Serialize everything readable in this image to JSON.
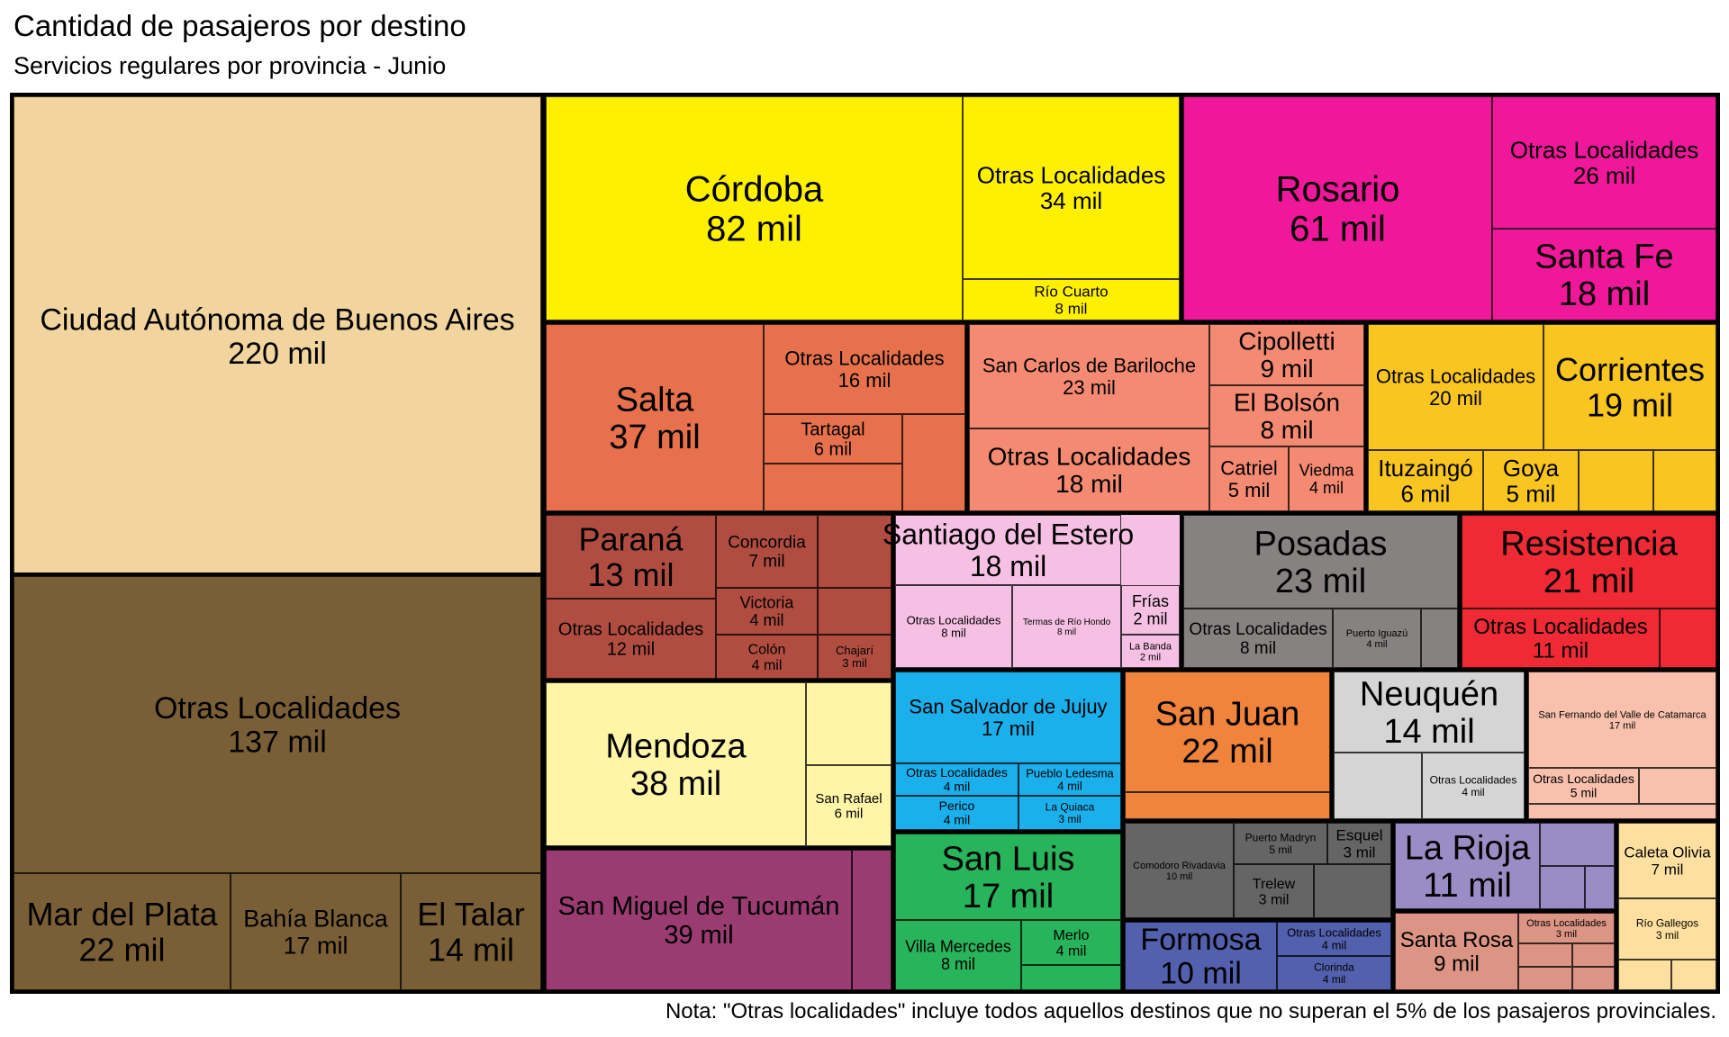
{
  "header": {
    "title": "Cantidad de pasajeros por destino",
    "subtitle": "Servicios regulares por provincia - Junio"
  },
  "footer": {
    "note": "Nota: \"Otras localidades\" incluye todos aquellos destinos que no superan el 5% de los pasajeros provinciales."
  },
  "chart_data": {
    "type": "treemap",
    "value_unit": "mil",
    "groups": [
      {
        "color": "#f2d49e",
        "items": [
          {
            "name": "Ciudad Autónoma de Buenos Aires",
            "value": 220
          }
        ]
      },
      {
        "color": "#7a5f36",
        "items": [
          {
            "name": "Otras Localidades",
            "value": 137
          },
          {
            "name": "Mar del Plata",
            "value": 22
          },
          {
            "name": "Bahía Blanca",
            "value": 17
          },
          {
            "name": "El Talar",
            "value": 14
          }
        ]
      },
      {
        "color": "#fff000",
        "items": [
          {
            "name": "Córdoba",
            "value": 82
          },
          {
            "name": "Otras Localidades",
            "value": 34
          },
          {
            "name": "Río Cuarto",
            "value": 8
          }
        ]
      },
      {
        "color": "#f0189a",
        "items": [
          {
            "name": "Rosario",
            "value": 61
          },
          {
            "name": "Otras Localidades",
            "value": 26
          },
          {
            "name": "Santa Fe",
            "value": 18
          }
        ]
      },
      {
        "color": "#e6714c",
        "items": [
          {
            "name": "Salta",
            "value": 37
          },
          {
            "name": "Otras Localidades",
            "value": 16
          },
          {
            "name": "Tartagal",
            "value": 6
          }
        ]
      },
      {
        "color": "#f58a72",
        "items": [
          {
            "name": "San Carlos de Bariloche",
            "value": 23
          },
          {
            "name": "Otras Localidades",
            "value": 18
          },
          {
            "name": "Cipolletti",
            "value": 9
          },
          {
            "name": "El Bolsón",
            "value": 8
          },
          {
            "name": "Catriel",
            "value": 5
          },
          {
            "name": "Viedma",
            "value": 4
          }
        ]
      },
      {
        "color": "#f9c520",
        "items": [
          {
            "name": "Otras Localidades",
            "value": 20
          },
          {
            "name": "Corrientes",
            "value": 19
          },
          {
            "name": "Ituzaingó",
            "value": 6
          },
          {
            "name": "Goya",
            "value": 5
          }
        ]
      },
      {
        "color": "#b04d40",
        "items": [
          {
            "name": "Paraná",
            "value": 13
          },
          {
            "name": "Otras Localidades",
            "value": 12
          },
          {
            "name": "Concordia",
            "value": 7
          },
          {
            "name": "Victoria",
            "value": 4
          },
          {
            "name": "Colón",
            "value": 4
          },
          {
            "name": "Chajarí",
            "value": 3
          }
        ]
      },
      {
        "color": "#f6c0e4",
        "items": [
          {
            "name": "Santiago del Estero",
            "value": 18
          },
          {
            "name": "Otras Localidades",
            "value": 8
          },
          {
            "name": "Termas de Río Hondo",
            "value": 8
          },
          {
            "name": "Frías",
            "value": 2
          },
          {
            "name": "La Banda",
            "value": 2
          }
        ]
      },
      {
        "color": "#868281",
        "items": [
          {
            "name": "Posadas",
            "value": 23
          },
          {
            "name": "Otras Localidades",
            "value": 8
          },
          {
            "name": "Puerto Iguazú",
            "value": 4
          }
        ]
      },
      {
        "color": "#ef2a34",
        "items": [
          {
            "name": "Resistencia",
            "value": 21
          },
          {
            "name": "Otras Localidades",
            "value": 11
          }
        ]
      },
      {
        "color": "#fff5a6",
        "items": [
          {
            "name": "Mendoza",
            "value": 38
          },
          {
            "name": "San Rafael",
            "value": 6
          }
        ]
      },
      {
        "color": "#1bb0ec",
        "items": [
          {
            "name": "San Salvador de Jujuy",
            "value": 17
          },
          {
            "name": "Otras Localidades",
            "value": 4
          },
          {
            "name": "Pueblo Ledesma",
            "value": 4
          },
          {
            "name": "Perico",
            "value": 4
          },
          {
            "name": "La Quiaca",
            "value": 3
          }
        ]
      },
      {
        "color": "#f0843c",
        "items": [
          {
            "name": "San Juan",
            "value": 22
          }
        ]
      },
      {
        "color": "#d5d5d5",
        "items": [
          {
            "name": "Neuquén",
            "value": 14
          },
          {
            "name": "Otras Localidades",
            "value": 4
          }
        ]
      },
      {
        "color": "#f9c1ad",
        "items": [
          {
            "name": "San Fernando del Valle de Catamarca",
            "value": 17
          },
          {
            "name": "Otras Localidades",
            "value": 5
          }
        ]
      },
      {
        "color": "#9a3c72",
        "items": [
          {
            "name": "San Miguel de Tucumán",
            "value": 39
          }
        ]
      },
      {
        "color": "#27b45a",
        "items": [
          {
            "name": "San Luis",
            "value": 17
          },
          {
            "name": "Villa Mercedes",
            "value": 8
          },
          {
            "name": "Merlo",
            "value": 4
          }
        ]
      },
      {
        "color": "#656565",
        "items": [
          {
            "name": "Comodoro Rivadavia",
            "value": 10
          },
          {
            "name": "Puerto Madryn",
            "value": 5
          },
          {
            "name": "Esquel",
            "value": 3
          },
          {
            "name": "Trelew",
            "value": 3
          }
        ]
      },
      {
        "color": "#9a8dc5",
        "items": [
          {
            "name": "La Rioja",
            "value": 11
          }
        ]
      },
      {
        "color": "#5360ae",
        "items": [
          {
            "name": "Formosa",
            "value": 10
          },
          {
            "name": "Otras Localidades",
            "value": 4
          },
          {
            "name": "Clorinda",
            "value": 4
          }
        ]
      },
      {
        "color": "#dc9584",
        "items": [
          {
            "name": "Santa Rosa",
            "value": 9
          },
          {
            "name": "Otras Localidades",
            "value": 3
          }
        ]
      },
      {
        "color": "#fde0a0",
        "items": [
          {
            "name": "Caleta Olivia",
            "value": 7
          },
          {
            "name": "Río Gallegos",
            "value": 3
          }
        ]
      }
    ]
  }
}
